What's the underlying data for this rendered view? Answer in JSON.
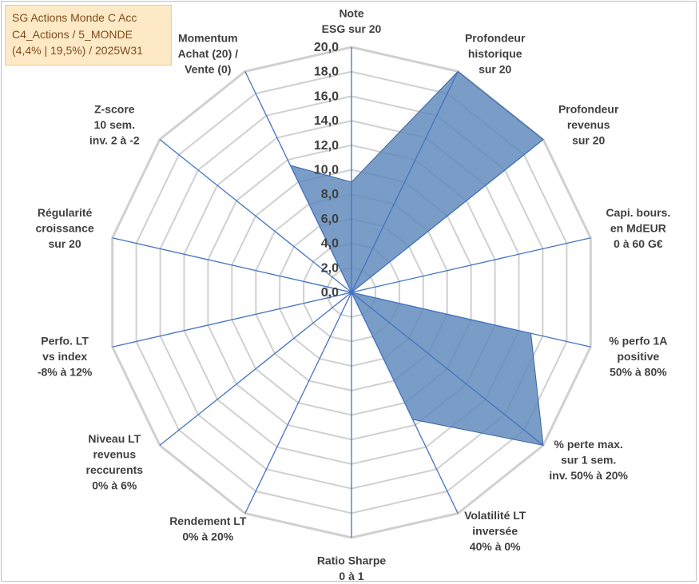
{
  "title_box": {
    "line1": "SG Actions Monde C Acc",
    "line2": "C4_Actions / 5_MONDE",
    "line3": "(4,4% | 19,5%) / 2025W31",
    "background": "#fde9c5",
    "text_color": "#7f4c1e"
  },
  "chart_data": {
    "type": "radar",
    "title": "",
    "axes": [
      [
        "Note",
        "ESG sur 20"
      ],
      [
        "Profondeur",
        "historique",
        "sur 20"
      ],
      [
        "Profondeur",
        "revenus",
        "sur 20"
      ],
      [
        "Capi. bours.",
        "en MdEUR",
        "0 à 60 G€"
      ],
      [
        "% perfo 1A",
        "positive",
        "50% à 80%"
      ],
      [
        "% perte max.",
        "sur 1 sem.",
        "inv. 50% à 20%"
      ],
      [
        "Volatilité LT",
        "inversée",
        "40% à 0%"
      ],
      [
        "Ratio Sharpe",
        "0 à 1"
      ],
      [
        "Rendement LT",
        "0% à 20%"
      ],
      [
        "Niveau LT",
        "revenus",
        "reccurents",
        "0% à 6%"
      ],
      [
        "Perfo. LT",
        "vs index",
        "-8% à 12%"
      ],
      [
        "Régularité",
        "croissance",
        "sur 20"
      ],
      [
        "Z-score",
        "10 sem.",
        "inv. 2 à -2"
      ],
      [
        "Momentum",
        "Achat (20) /",
        "Vente (0)"
      ]
    ],
    "series": [
      {
        "values": [
          9.0,
          20.0,
          20.0,
          0.0,
          15.0,
          20.0,
          11.5,
          0.0,
          0.0,
          0.0,
          0.0,
          7.0,
          0.0,
          11.5
        ]
      }
    ],
    "r_ticks": [
      "0,0",
      "2,0",
      "4,0",
      "6,0",
      "8,0",
      "10,0",
      "12,0",
      "14,0",
      "16,0",
      "18,0",
      "20,0"
    ],
    "r_range": [
      0,
      20
    ],
    "colors": {
      "fill": "#5b87b9",
      "stroke": "#3a64a0",
      "grid": "#d0d0d0",
      "spoke": "#4472c4",
      "label": "#404040"
    }
  }
}
